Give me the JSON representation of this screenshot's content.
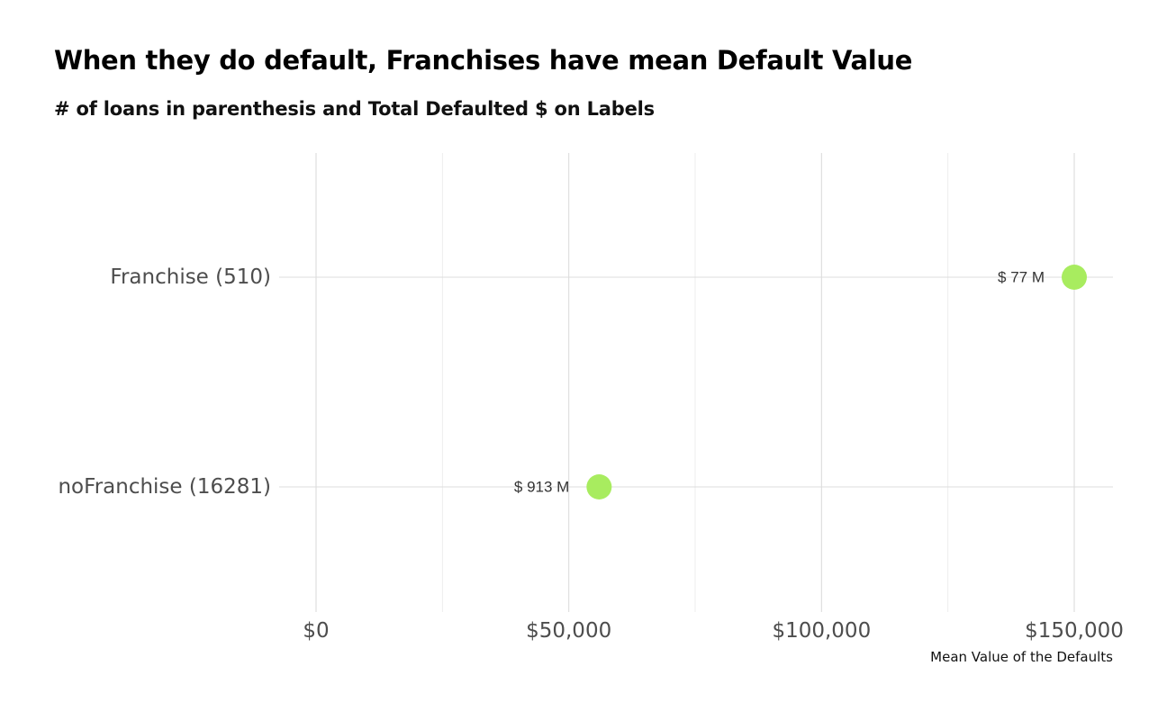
{
  "chart_data": {
    "type": "scatter",
    "title": "When they do default, Franchises have mean Default Value",
    "subtitle": "# of loans in parenthesis and Total Defaulted $ on Labels",
    "xlabel": "Mean Value of the Defaults",
    "ylabel": "",
    "categories": [
      "Franchise (510)",
      "noFranchise (16281)"
    ],
    "values": [
      150000,
      56000
    ],
    "point_labels": [
      "$ 77 M",
      "$ 913 M"
    ],
    "xlim": [
      0,
      157000
    ],
    "x_ticks": [
      0,
      50000,
      100000,
      150000
    ],
    "x_tick_labels": [
      "$0",
      "$50,000",
      "$100,000",
      "$150,000"
    ],
    "point_color": "#a8ec5f",
    "grid": true,
    "legend": "none"
  }
}
